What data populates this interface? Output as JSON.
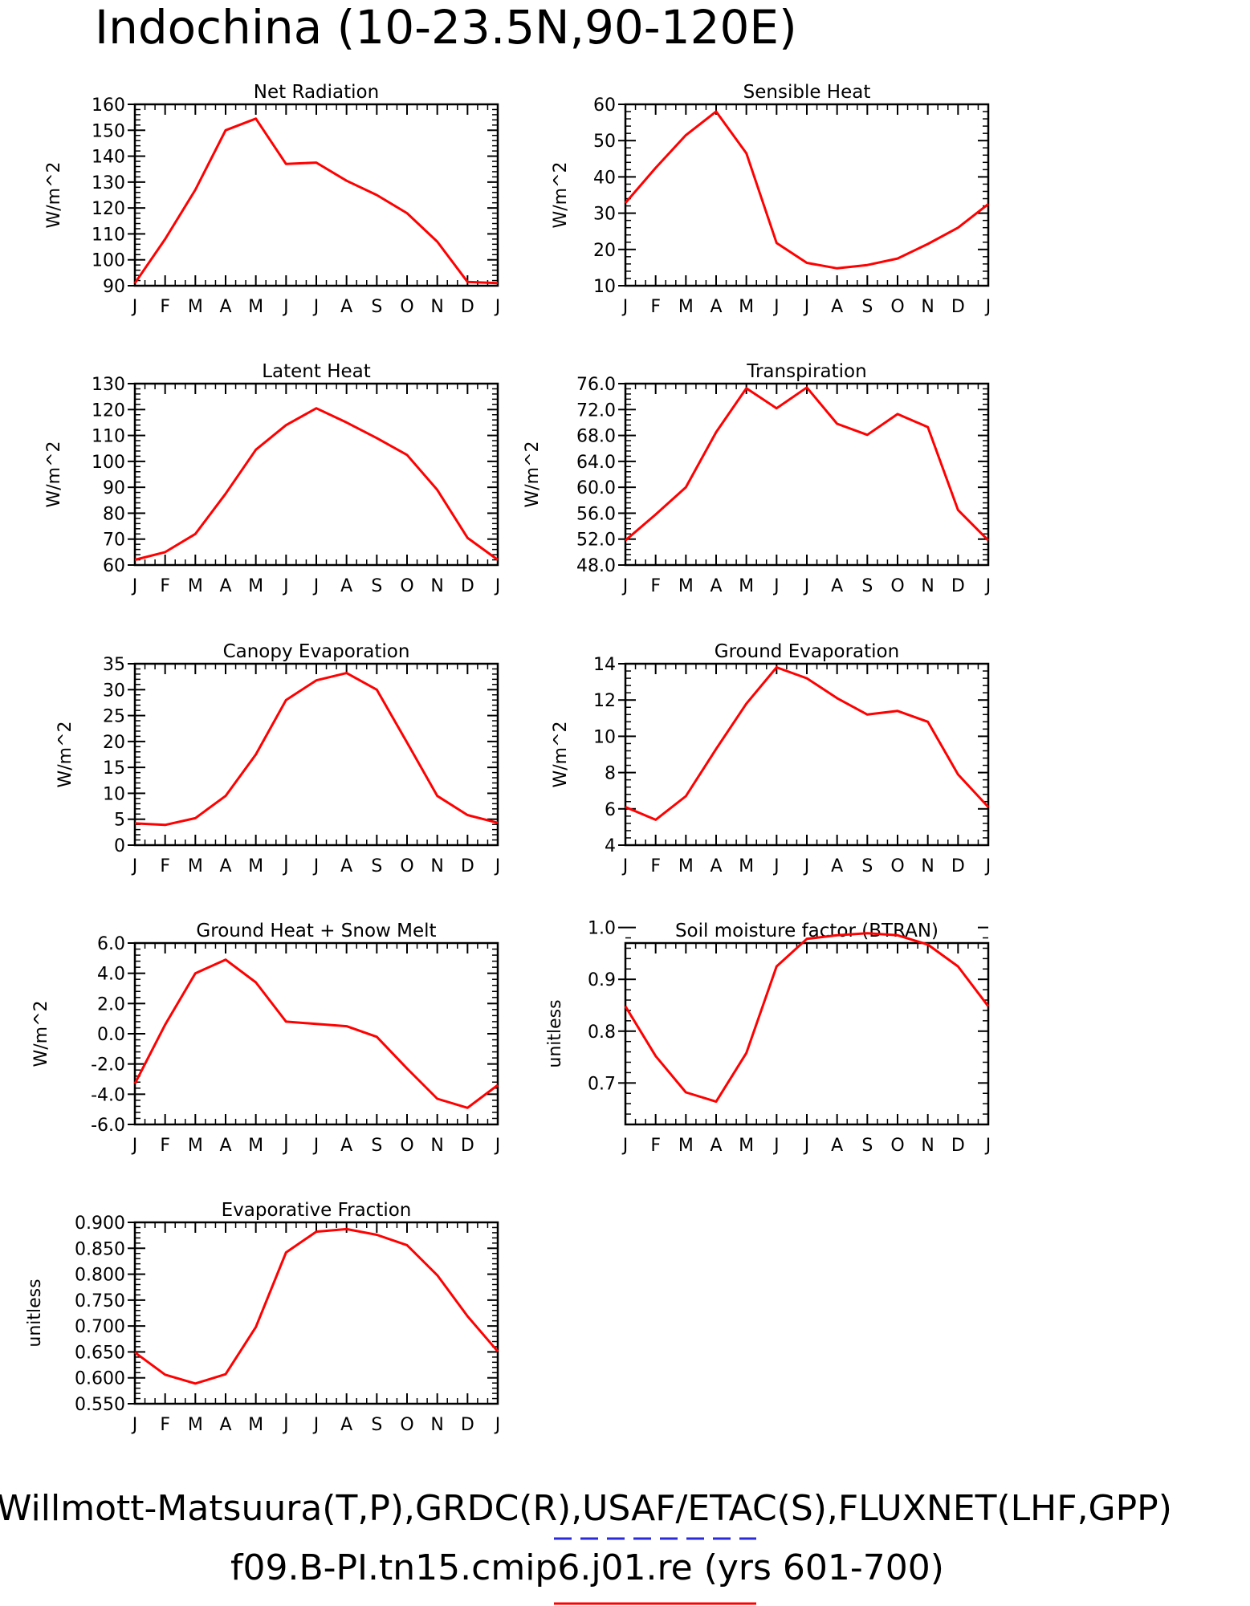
{
  "page": {
    "title": "Indochina (10-23.5N,90-120E)",
    "footer_line1": "Willmott-Matsuura(T,P),GRDC(R),USAF/ETAC(S),FLUXNET(LHF,GPP)",
    "footer_line2": "f09.B-PI.tn15.cmip6.j01.re (yrs 601-700)",
    "line_color": "#ff0000",
    "dash_color": "#2a2ad8"
  },
  "chart_data": [
    {
      "type": "line",
      "title": "Net Radiation",
      "ylabel": "W/m^2",
      "categories": [
        "J",
        "F",
        "M",
        "A",
        "M",
        "J",
        "J",
        "A",
        "S",
        "O",
        "N",
        "D",
        "J"
      ],
      "ylim": [
        90,
        160
      ],
      "yticks": [
        90,
        100,
        110,
        120,
        130,
        140,
        150,
        160
      ],
      "ytick_labels": [
        "90",
        "100",
        "110",
        "120",
        "130",
        "140",
        "150",
        "160"
      ],
      "values": [
        91,
        108,
        127,
        150,
        154.5,
        137,
        137.5,
        130.5,
        125,
        118,
        107,
        91.5,
        91
      ]
    },
    {
      "type": "line",
      "title": "Sensible Heat",
      "ylabel": "W/m^2",
      "categories": [
        "J",
        "F",
        "M",
        "A",
        "M",
        "J",
        "J",
        "A",
        "S",
        "O",
        "N",
        "D",
        "J"
      ],
      "ylim": [
        10,
        60
      ],
      "yticks": [
        10,
        20,
        30,
        40,
        50,
        60
      ],
      "ytick_labels": [
        "10",
        "20",
        "30",
        "40",
        "50",
        "60"
      ],
      "values": [
        32.8,
        42.5,
        51.5,
        58,
        46.5,
        21.8,
        16.3,
        14.8,
        15.7,
        17.5,
        21.5,
        26,
        32.5
      ]
    },
    {
      "type": "line",
      "title": "Latent Heat",
      "ylabel": "W/m^2",
      "categories": [
        "J",
        "F",
        "M",
        "A",
        "M",
        "J",
        "J",
        "A",
        "S",
        "O",
        "N",
        "D",
        "J"
      ],
      "ylim": [
        60,
        130
      ],
      "yticks": [
        60,
        70,
        80,
        90,
        100,
        110,
        120,
        130
      ],
      "ytick_labels": [
        "60",
        "70",
        "80",
        "90",
        "100",
        "110",
        "120",
        "130"
      ],
      "values": [
        62,
        65,
        72,
        87.5,
        104.5,
        114,
        120.5,
        115,
        109,
        102.5,
        89,
        70.5,
        62
      ]
    },
    {
      "type": "line",
      "title": "Transpiration",
      "ylabel": "W/m^2",
      "categories": [
        "J",
        "F",
        "M",
        "A",
        "M",
        "J",
        "J",
        "A",
        "S",
        "O",
        "N",
        "D",
        "J"
      ],
      "ylim": [
        48,
        76
      ],
      "yticks": [
        48,
        52,
        56,
        60,
        64,
        68,
        72,
        76
      ],
      "ytick_labels": [
        "48.0",
        "52.0",
        "56.0",
        "60.0",
        "64.0",
        "68.0",
        "72.0",
        "76.0"
      ],
      "values": [
        51.8,
        55.8,
        60,
        68.5,
        75.3,
        72.2,
        75.4,
        69.8,
        68.1,
        71.3,
        69.3,
        56.5,
        51.8
      ]
    },
    {
      "type": "line",
      "title": "Canopy Evaporation",
      "ylabel": "W/m^2",
      "categories": [
        "J",
        "F",
        "M",
        "A",
        "M",
        "J",
        "J",
        "A",
        "S",
        "O",
        "N",
        "D",
        "J"
      ],
      "ylim": [
        0,
        35
      ],
      "yticks": [
        0,
        5,
        10,
        15,
        20,
        25,
        30,
        35
      ],
      "ytick_labels": [
        "0",
        "5",
        "10",
        "15",
        "20",
        "25",
        "30",
        "35"
      ],
      "values": [
        4.2,
        3.9,
        5.2,
        9.5,
        17.5,
        28,
        31.8,
        33.2,
        30,
        19.8,
        9.5,
        5.8,
        4.3
      ]
    },
    {
      "type": "line",
      "title": "Ground Evaporation",
      "ylabel": "W/m^2",
      "categories": [
        "J",
        "F",
        "M",
        "A",
        "M",
        "J",
        "J",
        "A",
        "S",
        "O",
        "N",
        "D",
        "J"
      ],
      "ylim": [
        4,
        14
      ],
      "yticks": [
        4,
        6,
        8,
        10,
        12,
        14
      ],
      "ytick_labels": [
        "4",
        "6",
        "8",
        "10",
        "12",
        "14"
      ],
      "values": [
        6.1,
        5.4,
        6.7,
        9.3,
        11.8,
        13.8,
        13.2,
        12.1,
        11.2,
        11.4,
        10.8,
        7.9,
        6.1
      ]
    },
    {
      "type": "line",
      "title": "Ground Heat + Snow Melt",
      "ylabel": "W/m^2",
      "categories": [
        "J",
        "F",
        "M",
        "A",
        "M",
        "J",
        "J",
        "A",
        "S",
        "O",
        "N",
        "D",
        "J"
      ],
      "ylim": [
        -6,
        6
      ],
      "yticks": [
        -6,
        -4,
        -2,
        0,
        2,
        4,
        6
      ],
      "ytick_labels": [
        "-6.0",
        "-4.0",
        "-2.0",
        "0.0",
        "2.0",
        "4.0",
        "6.0"
      ],
      "values": [
        -3.3,
        0.6,
        4,
        4.9,
        3.4,
        0.8,
        0.65,
        0.5,
        -0.2,
        -2.3,
        -4.3,
        -4.9,
        -3.4
      ]
    },
    {
      "type": "line",
      "title": "Soil moisture factor (BTRAN)",
      "ylabel": "unitless",
      "categories": [
        "J",
        "F",
        "M",
        "A",
        "M",
        "J",
        "J",
        "A",
        "S",
        "O",
        "N",
        "D",
        "J"
      ],
      "ylim": [
        0.62,
        0.97
      ],
      "yticks": [
        0.7,
        0.8,
        0.9,
        1.0
      ],
      "ytick_labels": [
        "0.7",
        "0.8",
        "0.9",
        "1.0"
      ],
      "values": [
        0.848,
        0.752,
        0.682,
        0.664,
        0.758,
        0.925,
        0.978,
        0.985,
        0.989,
        0.985,
        0.967,
        0.925,
        0.848
      ]
    },
    {
      "type": "line",
      "title": "Evaporative Fraction",
      "ylabel": "unitless",
      "categories": [
        "J",
        "F",
        "M",
        "A",
        "M",
        "J",
        "J",
        "A",
        "S",
        "O",
        "N",
        "D",
        "J"
      ],
      "ylim": [
        0.55,
        0.9
      ],
      "yticks": [
        0.55,
        0.6,
        0.65,
        0.7,
        0.75,
        0.8,
        0.85,
        0.9
      ],
      "ytick_labels": [
        "0.550",
        "0.600",
        "0.650",
        "0.700",
        "0.750",
        "0.800",
        "0.850",
        "0.900"
      ],
      "values": [
        0.649,
        0.606,
        0.589,
        0.607,
        0.698,
        0.842,
        0.882,
        0.887,
        0.876,
        0.856,
        0.798,
        0.719,
        0.651
      ]
    }
  ]
}
